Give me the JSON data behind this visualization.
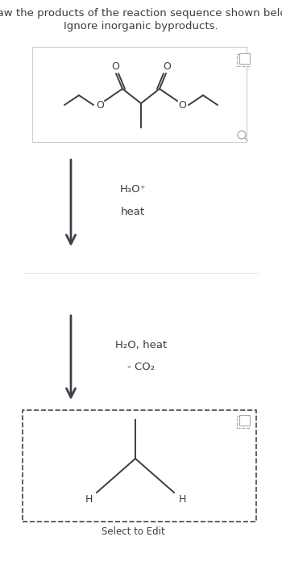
{
  "title_line1": "Draw the products of the reaction sequence shown below.",
  "title_line2": "Ignore inorganic byproducts.",
  "title_fontsize": 9.5,
  "bg_color": "#ffffff",
  "text_color": "#3d3d3d",
  "arrow_color": "#3a3f4a",
  "box1_border": "#cccccc",
  "box2_border": "#444444",
  "step1_label1": "H₃O⁺",
  "step1_label2": "heat",
  "step2_label1": "H₂O, heat",
  "step2_label2": "- CO₂",
  "select_to_edit": "Select to Edit"
}
